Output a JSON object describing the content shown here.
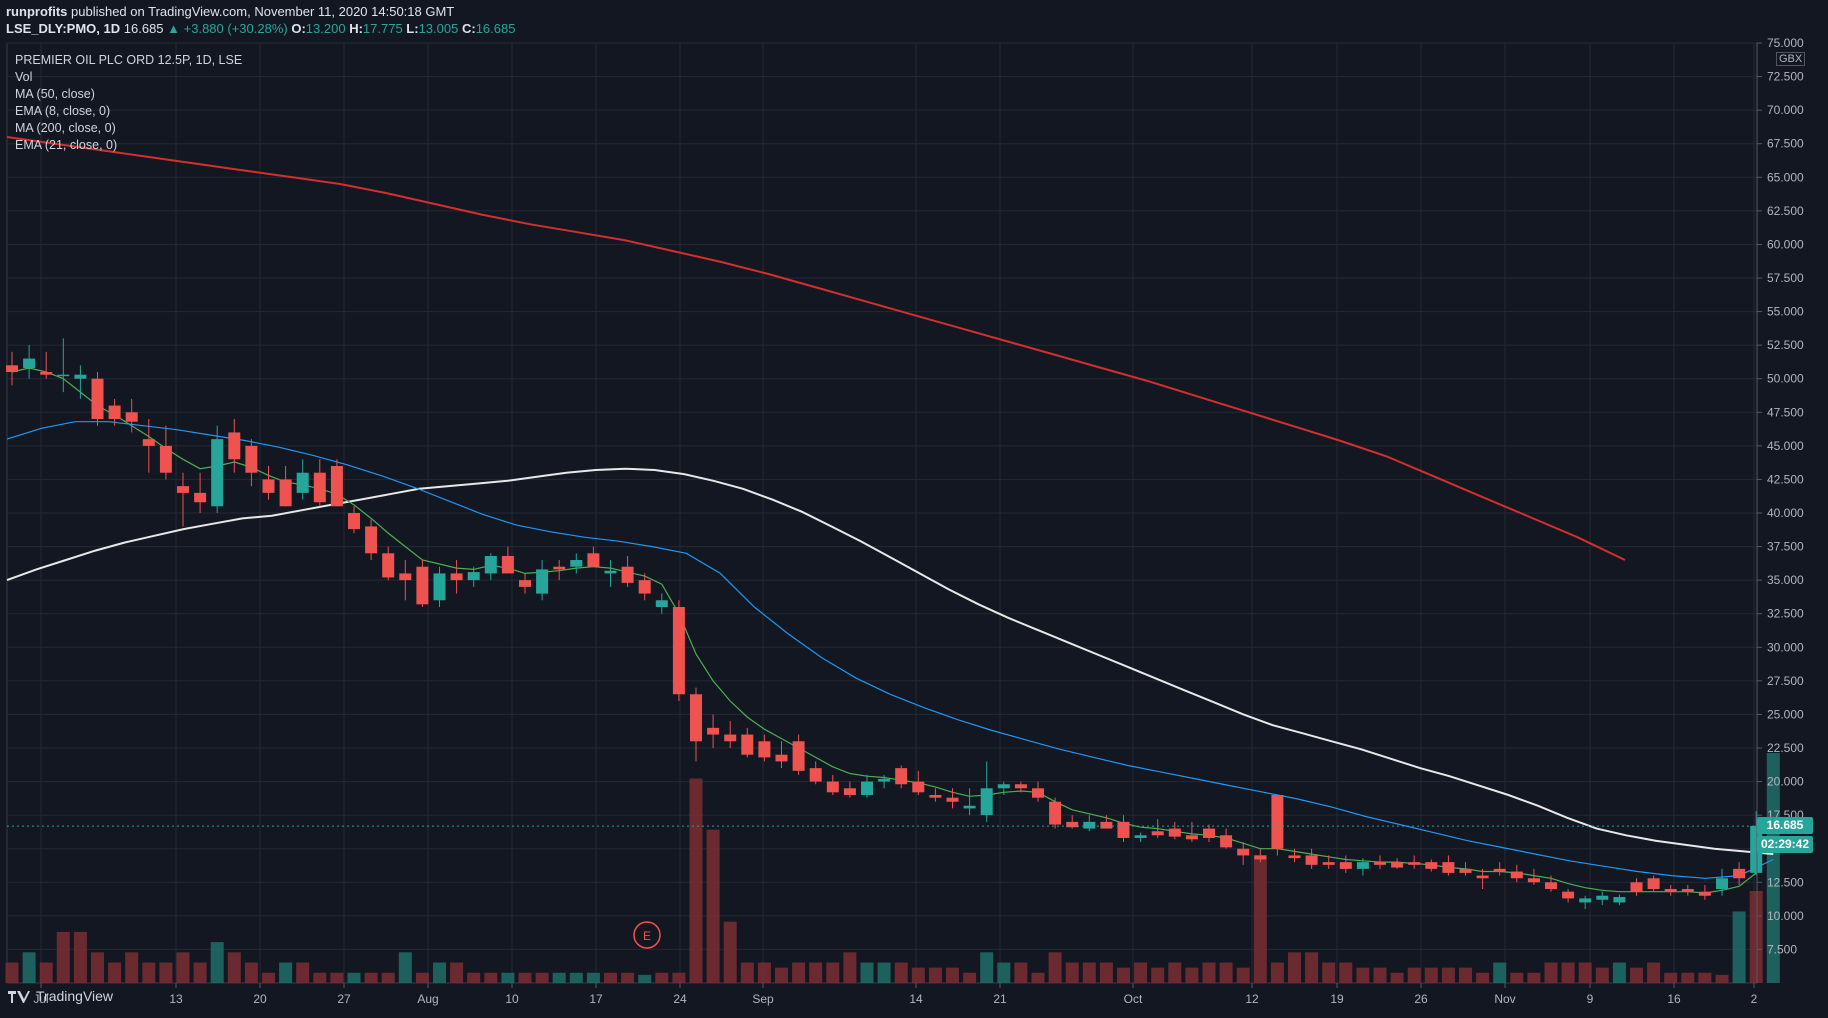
{
  "header": {
    "line1_user": "runprofits",
    "line1_rest": " published on TradingView.com, November 11, 2020 14:50:18 GMT",
    "symbol": "LSE_DLY:PMO, 1D",
    "last": "16.685",
    "change": "▲ +3.880 (+30.28%)",
    "o_label": "O:",
    "o": "13.200",
    "h_label": "H:",
    "h": "17.775",
    "l_label": "L:",
    "l": "13.005",
    "c_label": "C:",
    "c": "16.685"
  },
  "legend": {
    "title": "PREMIER OIL PLC ORD 12.5P, 1D, LSE",
    "items": [
      "Vol",
      "MA (50, close)",
      "EMA (8, close, 0)",
      "MA (200, close, 0)",
      "EMA (21, close, 0)"
    ]
  },
  "price_axis": {
    "currency": "GBX",
    "current_price": "16.685",
    "countdown": "02:29:42"
  },
  "footer": {
    "brand": "TradingView"
  },
  "earnings_marker": "E",
  "colors": {
    "bg": "#131722",
    "up": "#26a69a",
    "down": "#ef5350",
    "ma50": "#e8e8e8",
    "ema8": "#4caf50",
    "ma200": "#d32f2f",
    "ema21": "#2196f3"
  },
  "chart_data": {
    "type": "candlestick",
    "ylim": [
      5,
      75
    ],
    "yticks": [
      "75.000",
      "72.500",
      "70.000",
      "67.500",
      "65.000",
      "62.500",
      "60.000",
      "57.500",
      "55.000",
      "52.500",
      "50.000",
      "47.500",
      "45.000",
      "42.500",
      "40.000",
      "37.500",
      "35.000",
      "32.500",
      "30.000",
      "27.500",
      "25.000",
      "22.500",
      "20.000",
      "17.500",
      "15.000",
      "12.500",
      "10.000",
      "7.500"
    ],
    "xticks": [
      "Jul",
      "13",
      "20",
      "27",
      "Aug",
      "10",
      "17",
      "24",
      "Sep",
      "14",
      "21",
      "Oct",
      "12",
      "19",
      "26",
      "Nov",
      "9",
      "16",
      "2"
    ],
    "candles": [
      [
        51.0,
        52.0,
        49.5,
        50.5
      ],
      [
        50.8,
        52.5,
        50.0,
        51.5
      ],
      [
        50.5,
        52.0,
        50.0,
        50.3
      ],
      [
        50.2,
        53.0,
        49.0,
        50.3
      ],
      [
        50.0,
        51.0,
        48.5,
        50.3
      ],
      [
        50.0,
        50.5,
        46.5,
        47.0
      ],
      [
        48.0,
        48.5,
        46.5,
        47.0
      ],
      [
        47.5,
        48.5,
        46.0,
        46.8
      ],
      [
        45.5,
        47.0,
        43.0,
        45.0
      ],
      [
        45.0,
        46.5,
        42.5,
        43.0
      ],
      [
        42.0,
        43.0,
        39.0,
        41.5
      ],
      [
        41.5,
        43.0,
        40.0,
        40.8
      ],
      [
        40.5,
        46.5,
        40.0,
        45.5
      ],
      [
        46.0,
        47.0,
        43.0,
        44.0
      ],
      [
        45.0,
        45.5,
        42.0,
        43.0
      ],
      [
        42.5,
        43.5,
        41.0,
        41.5
      ],
      [
        42.5,
        43.5,
        40.5,
        40.5
      ],
      [
        41.5,
        44.0,
        41.0,
        43.0
      ],
      [
        43.0,
        44.0,
        40.5,
        40.8
      ],
      [
        43.5,
        44.0,
        40.5,
        40.5
      ],
      [
        40.0,
        40.5,
        38.5,
        38.8
      ],
      [
        39.0,
        39.5,
        36.5,
        37.0
      ],
      [
        37.0,
        37.5,
        35.0,
        35.2
      ],
      [
        35.5,
        36.5,
        33.5,
        35.0
      ],
      [
        36.0,
        36.5,
        33.0,
        33.2
      ],
      [
        33.5,
        36.0,
        33.0,
        35.5
      ],
      [
        35.5,
        36.5,
        34.0,
        35.0
      ],
      [
        35.0,
        36.0,
        34.5,
        35.6
      ],
      [
        35.5,
        37.0,
        35.0,
        36.8
      ],
      [
        36.8,
        37.5,
        35.5,
        35.5
      ],
      [
        35.0,
        35.5,
        34.0,
        34.5
      ],
      [
        34.0,
        36.5,
        33.5,
        35.8
      ],
      [
        36.0,
        36.5,
        35.0,
        35.8
      ],
      [
        36.0,
        37.0,
        35.5,
        36.5
      ],
      [
        37.0,
        37.5,
        36.0,
        36.0
      ],
      [
        35.5,
        36.5,
        34.5,
        35.7
      ],
      [
        36.0,
        36.8,
        34.5,
        34.8
      ],
      [
        35.0,
        35.5,
        33.5,
        34.0
      ],
      [
        33.0,
        34.0,
        32.5,
        33.5
      ],
      [
        33.0,
        33.5,
        26.0,
        26.5
      ],
      [
        26.5,
        27.0,
        21.5,
        23.0
      ],
      [
        24.0,
        25.0,
        22.5,
        23.5
      ],
      [
        23.5,
        24.5,
        22.5,
        23.0
      ],
      [
        23.5,
        24.0,
        21.8,
        22.0
      ],
      [
        23.0,
        23.5,
        21.5,
        21.8
      ],
      [
        22.0,
        23.0,
        21.0,
        21.5
      ],
      [
        23.0,
        23.5,
        20.5,
        20.8
      ],
      [
        21.0,
        21.5,
        19.8,
        20.0
      ],
      [
        20.0,
        20.5,
        19.0,
        19.2
      ],
      [
        19.5,
        20.0,
        18.8,
        19.0
      ],
      [
        19.0,
        20.5,
        18.8,
        20.0
      ],
      [
        20.0,
        20.5,
        19.5,
        20.2
      ],
      [
        21.0,
        21.2,
        19.5,
        19.8
      ],
      [
        20.0,
        20.8,
        19.0,
        19.2
      ],
      [
        19.0,
        19.5,
        18.5,
        18.8
      ],
      [
        18.8,
        19.5,
        18.0,
        18.5
      ],
      [
        18.0,
        19.5,
        17.5,
        18.2
      ],
      [
        17.5,
        21.5,
        17.0,
        19.5
      ],
      [
        19.5,
        20.0,
        19.0,
        19.8
      ],
      [
        19.8,
        20.0,
        19.2,
        19.5
      ],
      [
        19.5,
        20.0,
        18.5,
        18.8
      ],
      [
        18.5,
        18.8,
        16.5,
        16.8
      ],
      [
        17.0,
        17.5,
        16.5,
        16.6
      ],
      [
        16.5,
        17.5,
        16.3,
        17.0
      ],
      [
        17.0,
        17.5,
        16.5,
        16.5
      ],
      [
        17.0,
        17.5,
        15.5,
        15.8
      ],
      [
        15.8,
        16.2,
        15.5,
        16.0
      ],
      [
        16.3,
        17.2,
        15.8,
        16.0
      ],
      [
        16.5,
        17.0,
        15.7,
        15.9
      ],
      [
        16.0,
        17.0,
        15.5,
        15.7
      ],
      [
        16.5,
        16.8,
        15.5,
        15.8
      ],
      [
        16.0,
        16.5,
        15.0,
        15.1
      ],
      [
        15.0,
        15.5,
        13.8,
        14.5
      ],
      [
        14.5,
        15.0,
        14.0,
        14.2
      ],
      [
        19.0,
        19.0,
        14.5,
        15.0
      ],
      [
        14.5,
        15.0,
        14.0,
        14.3
      ],
      [
        14.5,
        15.0,
        13.5,
        13.8
      ],
      [
        14.0,
        14.5,
        13.5,
        13.8
      ],
      [
        14.0,
        14.5,
        13.2,
        13.5
      ],
      [
        13.5,
        14.3,
        13.0,
        14.0
      ],
      [
        14.0,
        14.5,
        13.5,
        13.8
      ],
      [
        14.0,
        14.3,
        13.5,
        13.6
      ],
      [
        14.0,
        14.5,
        13.5,
        13.8
      ],
      [
        14.0,
        14.2,
        13.3,
        13.5
      ],
      [
        14.0,
        14.5,
        13.0,
        13.2
      ],
      [
        13.5,
        14.0,
        13.0,
        13.2
      ],
      [
        13.0,
        13.5,
        12.0,
        12.8
      ],
      [
        13.5,
        14.0,
        13.0,
        13.3
      ],
      [
        13.3,
        13.8,
        12.5,
        12.8
      ],
      [
        12.8,
        13.5,
        12.3,
        12.5
      ],
      [
        12.5,
        13.0,
        11.8,
        12.0
      ],
      [
        11.8,
        12.0,
        11.0,
        11.3
      ],
      [
        11.0,
        11.5,
        10.5,
        11.3
      ],
      [
        11.2,
        11.8,
        10.8,
        11.5
      ],
      [
        11.0,
        11.6,
        10.8,
        11.4
      ],
      [
        12.5,
        12.8,
        11.5,
        11.8
      ],
      [
        12.8,
        13.0,
        11.8,
        12.0
      ],
      [
        12.0,
        12.3,
        11.5,
        11.8
      ],
      [
        12.0,
        12.3,
        11.5,
        11.8
      ],
      [
        11.8,
        12.3,
        11.2,
        11.5
      ],
      [
        12.0,
        13.5,
        11.5,
        12.8
      ],
      [
        13.5,
        14.0,
        12.3,
        12.8
      ],
      [
        13.2,
        17.8,
        13.0,
        16.7
      ]
    ],
    "series": [
      {
        "name": "MA (50, close)",
        "values": [
          35.0,
          35.8,
          36.5,
          37.2,
          37.8,
          38.3,
          38.8,
          39.2,
          39.6,
          39.8,
          40.2,
          40.6,
          41.0,
          41.4,
          41.8,
          42.0,
          42.2,
          42.4,
          42.7,
          43.0,
          43.2,
          43.3,
          43.2,
          42.9,
          42.4,
          41.8,
          41.0,
          40.1,
          39.0,
          37.9,
          36.7,
          35.5,
          34.3,
          33.2,
          32.2,
          31.3,
          30.4,
          29.5,
          28.6,
          27.7,
          26.8,
          25.9,
          25.0,
          24.2,
          23.6,
          23.0,
          22.4,
          21.7,
          21.0,
          20.4,
          19.7,
          19.0,
          18.2,
          17.3,
          16.5,
          16.0,
          15.6,
          15.3,
          15.0,
          14.8,
          14.6
        ]
      },
      {
        "name": "EMA (8, close, 0)",
        "values": [
          50.5,
          50.8,
          50.5,
          50.0,
          49.0,
          48.0,
          47.3,
          46.5,
          45.7,
          44.8,
          44.0,
          43.3,
          43.5,
          43.8,
          43.4,
          42.8,
          42.3,
          42.1,
          41.8,
          41.4,
          40.6,
          39.6,
          38.5,
          37.5,
          36.5,
          36.2,
          35.9,
          35.8,
          36.1,
          35.9,
          35.5,
          35.6,
          35.7,
          35.9,
          36.0,
          35.9,
          35.6,
          35.3,
          34.7,
          32.5,
          29.5,
          27.5,
          26.0,
          24.8,
          23.9,
          23.2,
          22.5,
          21.8,
          21.1,
          20.6,
          20.4,
          20.3,
          20.1,
          19.9,
          19.6,
          19.2,
          18.9,
          19.0,
          19.2,
          19.3,
          19.2,
          18.5,
          17.9,
          17.6,
          17.3,
          16.9,
          16.6,
          16.5,
          16.3,
          16.1,
          16.0,
          15.8,
          15.4,
          15.0,
          15.0,
          14.8,
          14.6,
          14.4,
          14.2,
          14.1,
          14.0,
          14.0,
          13.9,
          13.8,
          13.6,
          13.5,
          13.3,
          13.3,
          13.2,
          13.0,
          12.8,
          12.4,
          12.1,
          11.9,
          11.8,
          11.8,
          11.8,
          11.8,
          11.8,
          11.7,
          11.9,
          12.2,
          13.2
        ]
      },
      {
        "name": "MA (200, close, 0)",
        "values": [
          68.0,
          67.5,
          67.0,
          66.5,
          66.0,
          65.5,
          65.0,
          64.5,
          63.8,
          63.0,
          62.2,
          61.5,
          60.9,
          60.3,
          59.5,
          58.7,
          57.8,
          56.8,
          55.8,
          54.8,
          53.8,
          52.8,
          51.8,
          50.8,
          49.8,
          48.7,
          47.6,
          46.5,
          45.4,
          44.2,
          42.7,
          41.2,
          39.7,
          38.2,
          36.5
        ]
      },
      {
        "name": "EMA (21, close, 0)",
        "values": [
          45.5,
          46.3,
          46.8,
          46.8,
          46.5,
          46.2,
          45.8,
          45.4,
          44.9,
          44.3,
          43.6,
          42.8,
          41.9,
          40.9,
          39.9,
          39.1,
          38.6,
          38.2,
          37.9,
          37.5,
          37.0,
          35.5,
          33.0,
          31.0,
          29.2,
          27.7,
          26.5,
          25.5,
          24.6,
          23.8,
          23.1,
          22.4,
          21.8,
          21.2,
          20.7,
          20.2,
          19.7,
          19.2,
          18.7,
          18.1,
          17.4,
          16.8,
          16.2,
          15.6,
          15.1,
          14.6,
          14.1,
          13.7,
          13.3,
          13.0,
          12.8,
          13.0,
          14.2
        ]
      }
    ],
    "volume": [
      [
        2,
        0
      ],
      [
        3,
        1
      ],
      [
        2,
        0
      ],
      [
        5,
        0
      ],
      [
        5,
        0
      ],
      [
        3,
        0
      ],
      [
        2,
        0
      ],
      [
        3,
        0
      ],
      [
        2,
        0
      ],
      [
        2,
        0
      ],
      [
        3,
        0
      ],
      [
        2,
        0
      ],
      [
        4,
        1
      ],
      [
        3,
        0
      ],
      [
        2,
        0
      ],
      [
        1,
        0
      ],
      [
        2,
        1
      ],
      [
        2,
        0
      ],
      [
        1,
        0
      ],
      [
        1,
        0
      ],
      [
        1,
        1
      ],
      [
        1,
        0
      ],
      [
        1,
        0
      ],
      [
        3,
        1
      ],
      [
        1,
        0
      ],
      [
        2,
        1
      ],
      [
        2,
        0
      ],
      [
        1,
        0
      ],
      [
        1,
        0
      ],
      [
        1,
        1
      ],
      [
        1,
        0
      ],
      [
        1,
        0
      ],
      [
        1,
        1
      ],
      [
        1,
        1
      ],
      [
        1,
        1
      ],
      [
        1,
        0
      ],
      [
        1,
        0
      ],
      [
        0.8,
        1
      ],
      [
        1,
        0
      ],
      [
        1,
        0
      ],
      [
        20,
        0
      ],
      [
        15,
        0
      ],
      [
        6,
        0
      ],
      [
        2,
        0
      ],
      [
        2,
        0
      ],
      [
        1.5,
        0
      ],
      [
        2,
        0
      ],
      [
        2,
        0
      ],
      [
        2,
        0
      ],
      [
        3,
        0
      ],
      [
        2,
        1
      ],
      [
        2,
        1
      ],
      [
        2,
        0
      ],
      [
        1.5,
        0
      ],
      [
        1.5,
        0
      ],
      [
        1.5,
        0
      ],
      [
        1,
        0
      ],
      [
        3,
        1
      ],
      [
        2,
        1
      ],
      [
        2,
        0
      ],
      [
        1,
        0
      ],
      [
        3,
        0
      ],
      [
        2,
        0
      ],
      [
        2,
        0
      ],
      [
        2,
        0
      ],
      [
        1.5,
        0
      ],
      [
        2,
        0
      ],
      [
        1.5,
        0
      ],
      [
        2,
        0
      ],
      [
        1.5,
        0
      ],
      [
        2,
        0
      ],
      [
        2,
        0
      ],
      [
        1.5,
        0
      ],
      [
        12.5,
        0
      ],
      [
        2,
        0
      ],
      [
        3,
        0
      ],
      [
        3,
        0
      ],
      [
        2,
        0
      ],
      [
        2,
        0
      ],
      [
        1.5,
        0
      ],
      [
        1.5,
        0
      ],
      [
        1,
        0
      ],
      [
        1.5,
        0
      ],
      [
        1.5,
        0
      ],
      [
        1.5,
        0
      ],
      [
        1.5,
        0
      ],
      [
        1,
        0
      ],
      [
        2,
        1
      ],
      [
        1,
        0
      ],
      [
        1,
        0
      ],
      [
        2,
        0
      ],
      [
        2,
        0
      ],
      [
        2,
        0
      ],
      [
        1.5,
        0
      ],
      [
        2,
        1
      ],
      [
        1.5,
        0
      ],
      [
        2,
        0
      ],
      [
        1,
        0
      ],
      [
        1,
        0
      ],
      [
        1,
        0
      ],
      [
        0.8,
        0
      ],
      [
        7,
        1
      ],
      [
        9,
        0
      ],
      [
        22.5,
        1
      ]
    ]
  }
}
